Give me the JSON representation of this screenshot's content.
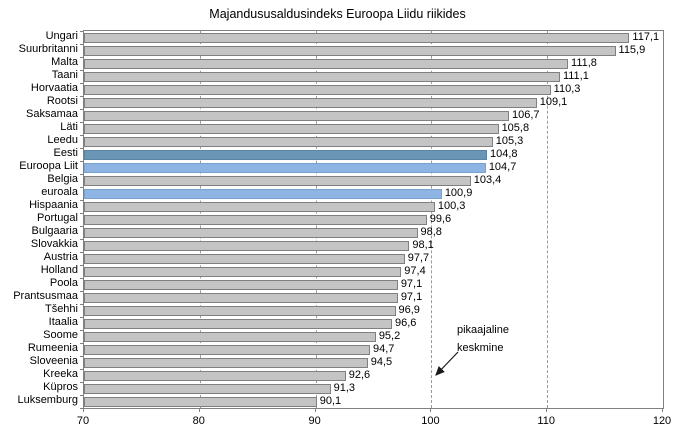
{
  "chart_data": {
    "type": "bar",
    "orientation": "horizontal",
    "title": "Majandususaldusindeks Euroopa Liidu riikides",
    "xlabel": "",
    "ylabel": "",
    "xlim": [
      70,
      120
    ],
    "x_ticks": [
      "70",
      "80",
      "90",
      "100",
      "110",
      "120"
    ],
    "gridlines": [
      80,
      90,
      100,
      110
    ],
    "legend": "none",
    "annotation": {
      "line1": "pikaajaline",
      "line2": "keskmine",
      "points_to_value": 100
    },
    "colors": {
      "default": {
        "fill": "#c4c4c4",
        "border": "#808080"
      },
      "estonia": {
        "fill": "#6b95b4",
        "border": "#5b84a3"
      },
      "eu": {
        "fill": "#8db4e2",
        "border": "#7aa2cf"
      }
    },
    "bars": [
      {
        "label": "Ungari",
        "value": 117.1,
        "display": "117,1",
        "color": "default"
      },
      {
        "label": "Suurbritanni",
        "value": 115.9,
        "display": "115,9",
        "color": "default"
      },
      {
        "label": "Malta",
        "value": 111.8,
        "display": "111,8",
        "color": "default"
      },
      {
        "label": "Taani",
        "value": 111.1,
        "display": "111,1",
        "color": "default"
      },
      {
        "label": "Horvaatia",
        "value": 110.3,
        "display": "110,3",
        "color": "default"
      },
      {
        "label": "Rootsi",
        "value": 109.1,
        "display": "109,1",
        "color": "default"
      },
      {
        "label": "Saksamaa",
        "value": 106.7,
        "display": "106,7",
        "color": "default"
      },
      {
        "label": "Läti",
        "value": 105.8,
        "display": "105,8",
        "color": "default"
      },
      {
        "label": "Leedu",
        "value": 105.3,
        "display": "105,3",
        "color": "default"
      },
      {
        "label": "Eesti",
        "value": 104.8,
        "display": "104,8",
        "color": "estonia"
      },
      {
        "label": "Euroopa Liit",
        "value": 104.7,
        "display": "104,7",
        "color": "eu"
      },
      {
        "label": "Belgia",
        "value": 103.4,
        "display": "103,4",
        "color": "default"
      },
      {
        "label": "euroala",
        "value": 100.9,
        "display": "100,9",
        "color": "eu"
      },
      {
        "label": "Hispaania",
        "value": 100.3,
        "display": "100,3",
        "color": "default"
      },
      {
        "label": "Portugal",
        "value": 99.6,
        "display": "99,6",
        "color": "default"
      },
      {
        "label": "Bulgaaria",
        "value": 98.8,
        "display": "98,8",
        "color": "default"
      },
      {
        "label": "Slovakkia",
        "value": 98.1,
        "display": "98,1",
        "color": "default"
      },
      {
        "label": "Austria",
        "value": 97.7,
        "display": "97,7",
        "color": "default"
      },
      {
        "label": "Holland",
        "value": 97.4,
        "display": "97,4",
        "color": "default"
      },
      {
        "label": "Poola",
        "value": 97.1,
        "display": "97,1",
        "color": "default"
      },
      {
        "label": "Prantsusmaa",
        "value": 97.1,
        "display": "97,1",
        "color": "default"
      },
      {
        "label": "Tšehhi",
        "value": 96.9,
        "display": "96,9",
        "color": "default"
      },
      {
        "label": "Itaalia",
        "value": 96.6,
        "display": "96,6",
        "color": "default"
      },
      {
        "label": "Soome",
        "value": 95.2,
        "display": "95,2",
        "color": "default"
      },
      {
        "label": "Rumeenia",
        "value": 94.7,
        "display": "94,7",
        "color": "default"
      },
      {
        "label": "Sloveenia",
        "value": 94.5,
        "display": "94,5",
        "color": "default"
      },
      {
        "label": "Kreeka",
        "value": 92.6,
        "display": "92,6",
        "color": "default"
      },
      {
        "label": "Küpros",
        "value": 91.3,
        "display": "91,3",
        "color": "default"
      },
      {
        "label": "Luksemburg",
        "value": 90.1,
        "display": "90,1",
        "color": "default"
      }
    ]
  }
}
